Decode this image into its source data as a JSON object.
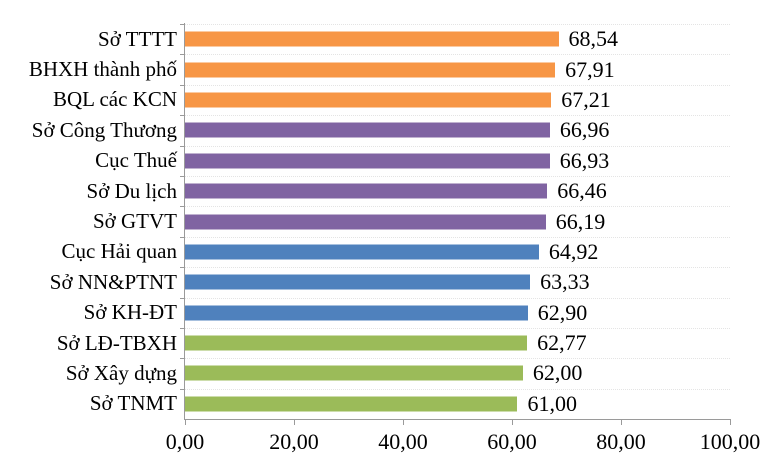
{
  "chart_data": {
    "type": "bar",
    "orientation": "horizontal",
    "title": "",
    "xlabel": "",
    "ylabel": "",
    "categories": [
      "Sở TTTT",
      "BHXH thành phố",
      "BQL các KCN",
      "Sở Công Thương",
      "Cục Thuế",
      "Sở Du lịch",
      "Sở GTVT",
      "Cục Hải quan",
      "Sở NN&PTNT",
      "Sở KH-ĐT",
      "Sở LĐ-TBXH",
      "Sở Xây dựng",
      "Sở TNMT"
    ],
    "values": [
      68.54,
      67.91,
      67.21,
      66.96,
      66.93,
      66.46,
      66.19,
      64.92,
      63.33,
      62.9,
      62.77,
      62.0,
      61.0
    ],
    "value_labels": [
      "68,54",
      "67,91",
      "67,21",
      "66,96",
      "66,93",
      "66,46",
      "66,19",
      "64,92",
      "63,33",
      "62,90",
      "62,77",
      "62,00",
      "61,00"
    ],
    "bar_colors": [
      "#F79646",
      "#F79646",
      "#F79646",
      "#8064A2",
      "#8064A2",
      "#8064A2",
      "#8064A2",
      "#4F81BD",
      "#4F81BD",
      "#4F81BD",
      "#9BBB59",
      "#9BBB59",
      "#9BBB59"
    ],
    "xlim": [
      0,
      100
    ],
    "x_ticks": [
      {
        "value": 0,
        "label": "0,00"
      },
      {
        "value": 20,
        "label": "20,00"
      },
      {
        "value": 40,
        "label": "40,00"
      },
      {
        "value": 60,
        "label": "60,00"
      },
      {
        "value": 80,
        "label": "80,00"
      },
      {
        "value": 100,
        "label": "100,00"
      }
    ],
    "number_format": "decimal-comma",
    "axis_color": "#9a9a9a",
    "gridline_color": "#e4e4e4",
    "background": "#ffffff",
    "legend": "none",
    "grid": "dotted-category-boundaries"
  }
}
